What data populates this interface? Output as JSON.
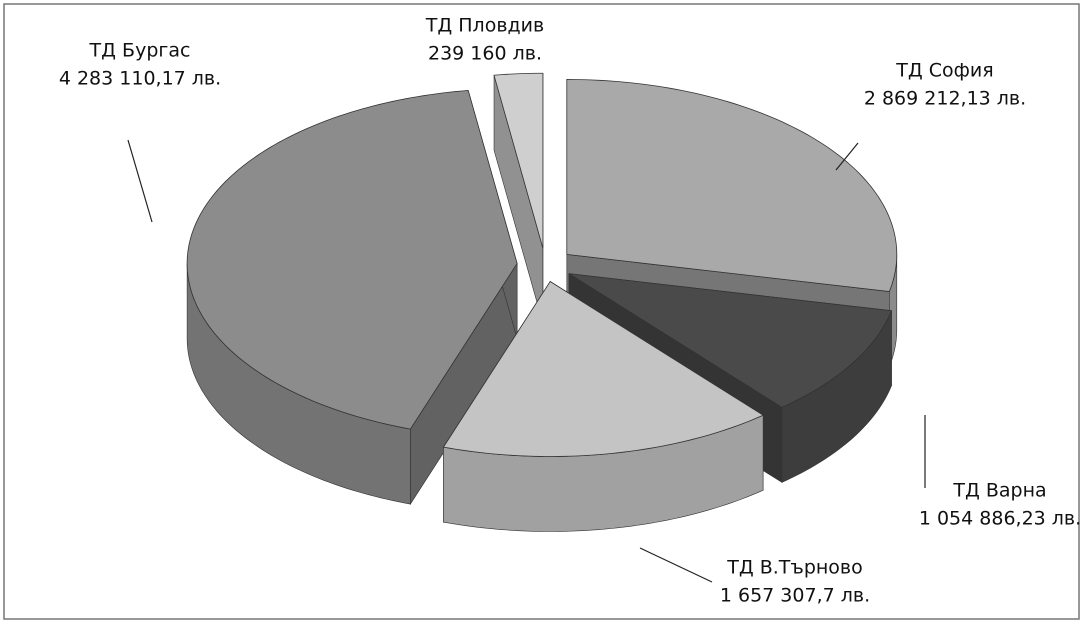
{
  "chart_data": {
    "type": "pie",
    "categories": [
      "ТД София",
      "ТД Варна",
      "ТД В.Търново",
      "ТД Бургас",
      "ТД Пловдив"
    ],
    "values": [
      2869212.13,
      1054886.23,
      1657307.7,
      4283110.17,
      239160
    ],
    "value_labels": [
      "2 869 212,13 лв.",
      "1 054 886,23 лв.",
      "1 657 307,7 лв.",
      "4 283 110,17 лв.",
      "239 160 лв."
    ],
    "colors": [
      "#a9a9a9",
      "#4a4a4a",
      "#c4c4c4",
      "#8c8c8c",
      "#cfcfcf"
    ]
  }
}
